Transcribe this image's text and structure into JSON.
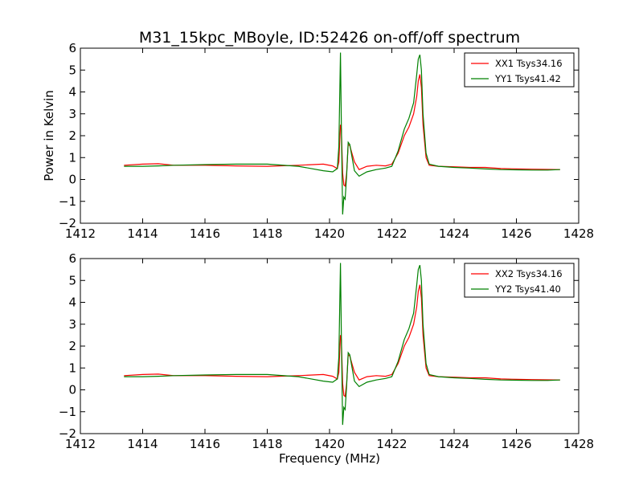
{
  "figure": {
    "title": "M31_15kpc_MBoyle, ID:52426 on-off/off spectrum",
    "xlabel": "Frequency (MHz)",
    "ylabel": "Power in Kelvin"
  },
  "chart_data": [
    {
      "type": "line",
      "xlim": [
        1412,
        1428
      ],
      "ylim": [
        -2,
        6
      ],
      "xticks": [
        1412,
        1414,
        1416,
        1418,
        1420,
        1422,
        1424,
        1426,
        1428
      ],
      "yticks": [
        -2,
        -1,
        0,
        1,
        2,
        3,
        4,
        5,
        6
      ],
      "ylabel": "Power in Kelvin",
      "legend": "top-right",
      "grid": false,
      "series": [
        {
          "name": "XX1 Tsys34.16",
          "color": "#ff0000",
          "x": [
            1413.4,
            1414.0,
            1414.5,
            1415.0,
            1416.0,
            1417.0,
            1418.0,
            1419.0,
            1419.8,
            1420.1,
            1420.25,
            1420.3,
            1420.35,
            1420.38,
            1420.42,
            1420.46,
            1420.5,
            1420.55,
            1420.6,
            1420.65,
            1420.7,
            1420.8,
            1420.95,
            1421.2,
            1421.5,
            1421.8,
            1422.0,
            1422.2,
            1422.4,
            1422.55,
            1422.7,
            1422.8,
            1422.85,
            1422.9,
            1422.95,
            1423.0,
            1423.1,
            1423.2,
            1423.5,
            1424.0,
            1424.5,
            1425.0,
            1425.5,
            1426.0,
            1426.5,
            1427.0,
            1427.4
          ],
          "y": [
            0.65,
            0.7,
            0.72,
            0.65,
            0.65,
            0.62,
            0.6,
            0.65,
            0.7,
            0.62,
            0.5,
            0.8,
            2.5,
            2.3,
            0.3,
            -0.25,
            -0.3,
            0.3,
            1.6,
            1.55,
            1.3,
            0.8,
            0.45,
            0.6,
            0.65,
            0.62,
            0.7,
            1.2,
            2.0,
            2.4,
            3.0,
            3.8,
            4.5,
            4.8,
            4.2,
            2.5,
            1.0,
            0.65,
            0.6,
            0.58,
            0.55,
            0.55,
            0.5,
            0.48,
            0.47,
            0.46,
            0.45
          ]
        },
        {
          "name": "YY1 Tsys41.42",
          "color": "#008000",
          "x": [
            1413.4,
            1414.0,
            1414.5,
            1415.0,
            1416.0,
            1417.0,
            1418.0,
            1419.0,
            1419.8,
            1420.1,
            1420.25,
            1420.3,
            1420.35,
            1420.38,
            1420.42,
            1420.46,
            1420.5,
            1420.55,
            1420.6,
            1420.65,
            1420.7,
            1420.8,
            1420.95,
            1421.2,
            1421.5,
            1421.8,
            1422.0,
            1422.2,
            1422.4,
            1422.55,
            1422.7,
            1422.8,
            1422.85,
            1422.9,
            1422.95,
            1423.0,
            1423.1,
            1423.2,
            1423.5,
            1424.0,
            1424.5,
            1425.0,
            1425.5,
            1426.0,
            1426.5,
            1427.0,
            1427.4
          ],
          "y": [
            0.6,
            0.6,
            0.62,
            0.65,
            0.68,
            0.7,
            0.7,
            0.6,
            0.4,
            0.35,
            0.5,
            1.5,
            5.8,
            2.5,
            -1.6,
            -0.8,
            -0.9,
            0.2,
            1.7,
            1.6,
            1.2,
            0.4,
            0.15,
            0.35,
            0.45,
            0.52,
            0.6,
            1.3,
            2.3,
            2.8,
            3.5,
            4.8,
            5.5,
            5.7,
            5.0,
            3.0,
            1.2,
            0.7,
            0.6,
            0.55,
            0.52,
            0.48,
            0.45,
            0.44,
            0.43,
            0.43,
            0.45
          ]
        }
      ]
    },
    {
      "type": "line",
      "xlim": [
        1412,
        1428
      ],
      "ylim": [
        -2,
        6
      ],
      "xticks": [
        1412,
        1414,
        1416,
        1418,
        1420,
        1422,
        1424,
        1426,
        1428
      ],
      "yticks": [
        -2,
        -1,
        0,
        1,
        2,
        3,
        4,
        5,
        6
      ],
      "xlabel": "Frequency (MHz)",
      "legend": "top-right",
      "grid": false,
      "series": [
        {
          "name": "XX2 Tsys34.16",
          "color": "#ff0000",
          "x": [
            1413.4,
            1414.0,
            1414.5,
            1415.0,
            1416.0,
            1417.0,
            1418.0,
            1419.0,
            1419.8,
            1420.1,
            1420.25,
            1420.3,
            1420.35,
            1420.38,
            1420.42,
            1420.46,
            1420.5,
            1420.55,
            1420.6,
            1420.65,
            1420.7,
            1420.8,
            1420.95,
            1421.2,
            1421.5,
            1421.8,
            1422.0,
            1422.2,
            1422.4,
            1422.55,
            1422.7,
            1422.8,
            1422.85,
            1422.9,
            1422.95,
            1423.0,
            1423.1,
            1423.2,
            1423.5,
            1424.0,
            1424.5,
            1425.0,
            1425.5,
            1426.0,
            1426.5,
            1427.0,
            1427.4
          ],
          "y": [
            0.65,
            0.7,
            0.72,
            0.65,
            0.65,
            0.62,
            0.6,
            0.65,
            0.7,
            0.62,
            0.5,
            0.8,
            2.5,
            2.3,
            0.3,
            -0.25,
            -0.3,
            0.3,
            1.6,
            1.55,
            1.3,
            0.8,
            0.45,
            0.6,
            0.65,
            0.62,
            0.7,
            1.2,
            2.0,
            2.4,
            3.0,
            3.8,
            4.5,
            4.8,
            4.2,
            2.5,
            1.0,
            0.65,
            0.6,
            0.58,
            0.55,
            0.55,
            0.5,
            0.48,
            0.47,
            0.46,
            0.45
          ]
        },
        {
          "name": "YY2 Tsys41.40",
          "color": "#008000",
          "x": [
            1413.4,
            1414.0,
            1414.5,
            1415.0,
            1416.0,
            1417.0,
            1418.0,
            1419.0,
            1419.8,
            1420.1,
            1420.25,
            1420.3,
            1420.35,
            1420.38,
            1420.42,
            1420.46,
            1420.5,
            1420.55,
            1420.6,
            1420.65,
            1420.7,
            1420.8,
            1420.95,
            1421.2,
            1421.5,
            1421.8,
            1422.0,
            1422.2,
            1422.4,
            1422.55,
            1422.7,
            1422.8,
            1422.85,
            1422.9,
            1422.95,
            1423.0,
            1423.1,
            1423.2,
            1423.5,
            1424.0,
            1424.5,
            1425.0,
            1425.5,
            1426.0,
            1426.5,
            1427.0,
            1427.4
          ],
          "y": [
            0.6,
            0.6,
            0.62,
            0.65,
            0.68,
            0.7,
            0.7,
            0.6,
            0.4,
            0.35,
            0.5,
            1.5,
            5.8,
            2.5,
            -1.6,
            -0.8,
            -0.9,
            0.2,
            1.7,
            1.6,
            1.2,
            0.4,
            0.15,
            0.35,
            0.45,
            0.52,
            0.6,
            1.3,
            2.3,
            2.8,
            3.5,
            4.8,
            5.5,
            5.7,
            5.0,
            3.0,
            1.2,
            0.7,
            0.6,
            0.55,
            0.52,
            0.48,
            0.45,
            0.44,
            0.43,
            0.43,
            0.45
          ]
        }
      ]
    }
  ]
}
